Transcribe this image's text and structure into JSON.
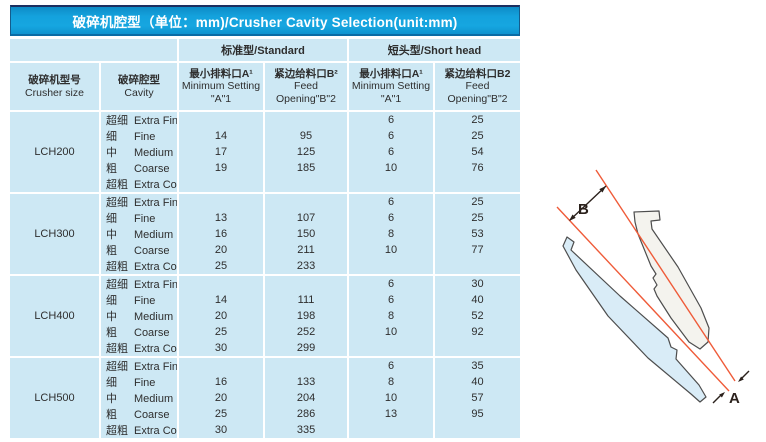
{
  "title": "破碎机腔型（单位：mm)/Crusher Cavity Selection(unit:mm)",
  "table": {
    "group_headers": {
      "standard": "标准型/Standard",
      "short_head": "短头型/Short head"
    },
    "columns": [
      {
        "id": "crusher_size",
        "zh": "破碎机型号",
        "en": "Crusher size"
      },
      {
        "id": "cavity",
        "zh": "破碎腔型",
        "en": "Cavity"
      },
      {
        "id": "std_min_setting",
        "zh": "最小排料口A¹",
        "en": "Minimum Setting",
        "en2": "\"A\"1"
      },
      {
        "id": "std_feed_opening",
        "zh": "紧边给料口B²",
        "en": "Feed",
        "en2": "Opening\"B\"2"
      },
      {
        "id": "sh_min_setting",
        "zh": "最小排料口A¹",
        "en": "Minimum Setting",
        "en2": "\"A\"1"
      },
      {
        "id": "sh_feed_opening",
        "zh": "紧边给料口B2",
        "en": "Feed",
        "en2": "Opening\"B\"2"
      }
    ],
    "groups": [
      {
        "model": "LCH200",
        "rows": [
          {
            "zh": "超细",
            "en": "Extra Fine",
            "std_a": "",
            "std_b": "",
            "sh_a": "6",
            "sh_b": "25"
          },
          {
            "zh": "细",
            "en": "Fine",
            "std_a": "14",
            "std_b": "95",
            "sh_a": "6",
            "sh_b": "25"
          },
          {
            "zh": "中",
            "en": "Medium",
            "std_a": "17",
            "std_b": "125",
            "sh_a": "6",
            "sh_b": "54"
          },
          {
            "zh": "粗",
            "en": "Coarse",
            "std_a": "19",
            "std_b": "185",
            "sh_a": "10",
            "sh_b": "76"
          },
          {
            "zh": "超粗",
            "en": "Extra Coarse",
            "std_a": "",
            "std_b": "",
            "sh_a": "",
            "sh_b": ""
          }
        ]
      },
      {
        "model": "LCH300",
        "rows": [
          {
            "zh": "超细",
            "en": "Extra Fine",
            "std_a": "",
            "std_b": "",
            "sh_a": "6",
            "sh_b": "25"
          },
          {
            "zh": "细",
            "en": "Fine",
            "std_a": "13",
            "std_b": "107",
            "sh_a": "6",
            "sh_b": "25"
          },
          {
            "zh": "中",
            "en": "Medium",
            "std_a": "16",
            "std_b": "150",
            "sh_a": "8",
            "sh_b": "53"
          },
          {
            "zh": "粗",
            "en": "Coarse",
            "std_a": "20",
            "std_b": "211",
            "sh_a": "10",
            "sh_b": "77"
          },
          {
            "zh": "超粗",
            "en": "Extra Coarse",
            "std_a": "25",
            "std_b": "233",
            "sh_a": "",
            "sh_b": ""
          }
        ]
      },
      {
        "model": "LCH400",
        "rows": [
          {
            "zh": "超细",
            "en": "Extra Fine",
            "std_a": "",
            "std_b": "",
            "sh_a": "6",
            "sh_b": "30"
          },
          {
            "zh": "细",
            "en": "Fine",
            "std_a": "14",
            "std_b": "111",
            "sh_a": "6",
            "sh_b": "40"
          },
          {
            "zh": "中",
            "en": "Medium",
            "std_a": "20",
            "std_b": "198",
            "sh_a": "8",
            "sh_b": "52"
          },
          {
            "zh": "粗",
            "en": "Coarse",
            "std_a": "25",
            "std_b": "252",
            "sh_a": "10",
            "sh_b": "92"
          },
          {
            "zh": "超粗",
            "en": "Extra Coarse",
            "std_a": "30",
            "std_b": "299",
            "sh_a": "",
            "sh_b": ""
          }
        ]
      },
      {
        "model": "LCH500",
        "rows": [
          {
            "zh": "超细",
            "en": "Extra Fine",
            "std_a": "",
            "std_b": "",
            "sh_a": "6",
            "sh_b": "35"
          },
          {
            "zh": "细",
            "en": "Fine",
            "std_a": "16",
            "std_b": "133",
            "sh_a": "8",
            "sh_b": "40"
          },
          {
            "zh": "中",
            "en": "Medium",
            "std_a": "20",
            "std_b": "204",
            "sh_a": "10",
            "sh_b": "57"
          },
          {
            "zh": "粗",
            "en": "Coarse",
            "std_a": "25",
            "std_b": "286",
            "sh_a": "13",
            "sh_b": "95"
          },
          {
            "zh": "超粗",
            "en": "Extra Coarse",
            "std_a": "30",
            "std_b": "335",
            "sh_a": "",
            "sh_b": ""
          }
        ]
      }
    ]
  },
  "diagram": {
    "label_b": "B",
    "label_a": "A"
  },
  "colors": {
    "title_bar_blue": "#14a2dd",
    "title_bar_border_top": "#1c2f60",
    "cell_background": "#cde8f4",
    "separator": "#ffffff",
    "body_text": "#2e2e2e",
    "diagram_red_line": "#ef5b39",
    "mantle_fill": "#d9ecf7",
    "concave_fill": "#f4f3ee",
    "shape_outline": "#4d4d4d"
  }
}
